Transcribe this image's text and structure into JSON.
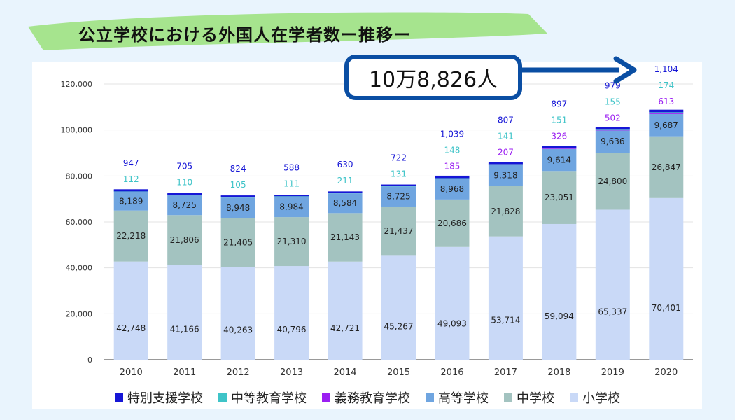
{
  "title": "公立学校における外国人在学者数ー推移ー",
  "callout": "10万8,826人",
  "colors": {
    "background": "#e9f4fd",
    "banner": "#a6e48e",
    "callout_border": "#0a4ea3",
    "arrow": "#0a4ea3"
  },
  "chart_data": {
    "type": "bar",
    "stacked": true,
    "categories": [
      "2010",
      "2011",
      "2012",
      "2013",
      "2014",
      "2015",
      "2016",
      "2017",
      "2018",
      "2019",
      "2020"
    ],
    "ylim": [
      0,
      120000
    ],
    "yticks": [
      0,
      20000,
      40000,
      60000,
      80000,
      100000,
      120000
    ],
    "ytick_labels": [
      "0",
      "20,000",
      "40,000",
      "60,000",
      "80,000",
      "100,000",
      "120,000"
    ],
    "grid": true,
    "legend_position": "bottom",
    "series": [
      {
        "name": "小学校",
        "color": "#c9d9f7",
        "values": [
          42748,
          41166,
          40263,
          40796,
          42721,
          45267,
          49093,
          53714,
          59094,
          65337,
          70401
        ],
        "labels": [
          "42,748",
          "41,166",
          "40,263",
          "40,796",
          "42,721",
          "45,267",
          "49,093",
          "53,714",
          "59,094",
          "65,337",
          "70,401"
        ]
      },
      {
        "name": "中学校",
        "color": "#a3c3c0",
        "values": [
          22218,
          21806,
          21405,
          21310,
          21143,
          21437,
          20686,
          21828,
          23051,
          24800,
          26847
        ],
        "labels": [
          "22,218",
          "21,806",
          "21,405",
          "21,310",
          "21,143",
          "21,437",
          "20,686",
          "21,828",
          "23,051",
          "24,800",
          "26,847"
        ]
      },
      {
        "name": "高等学校",
        "color": "#6fa5e0",
        "values": [
          8189,
          8725,
          8948,
          8984,
          8584,
          8725,
          8968,
          9318,
          9614,
          9636,
          9687
        ],
        "labels": [
          "8,189",
          "8,725",
          "8,948",
          "8,984",
          "8,584",
          "8,725",
          "8,968",
          "9,318",
          "9,614",
          "9,636",
          "9,687"
        ]
      },
      {
        "name": "義務教育学校",
        "color": "#9b1ff2",
        "values": [
          0,
          0,
          0,
          0,
          0,
          0,
          185,
          207,
          326,
          502,
          613
        ],
        "labels": [
          "",
          "",
          "",
          "",
          "",
          "",
          "185",
          "207",
          "326",
          "502",
          "613"
        ]
      },
      {
        "name": "中等教育学校",
        "color": "#3fc4c8",
        "values": [
          112,
          110,
          105,
          111,
          211,
          131,
          148,
          141,
          151,
          155,
          174
        ],
        "labels": [
          "112",
          "110",
          "105",
          "111",
          "211",
          "131",
          "148",
          "141",
          "151",
          "155",
          "174"
        ]
      },
      {
        "name": "特別支援学校",
        "color": "#1616d6",
        "values": [
          947,
          705,
          824,
          588,
          630,
          722,
          1039,
          807,
          897,
          979,
          1104
        ],
        "labels": [
          "947",
          "705",
          "824",
          "588",
          "630",
          "722",
          "1,039",
          "807",
          "897",
          "979",
          "1,104"
        ]
      }
    ]
  },
  "legend_order": [
    "特別支援学校",
    "中等教育学校",
    "義務教育学校",
    "高等学校",
    "中学校",
    "小学校"
  ]
}
